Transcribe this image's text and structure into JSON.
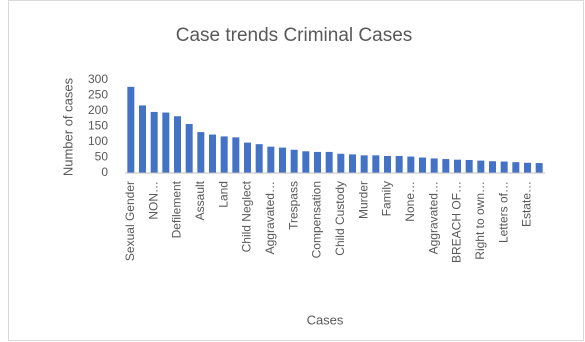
{
  "chart_data": {
    "type": "bar",
    "title": "Case trends Criminal Cases",
    "x_label": "Cases",
    "y_label": "Number of cases",
    "categories": [
      "Sexual Gender",
      null,
      "NON…",
      null,
      "Defilement",
      null,
      "Assault",
      null,
      "Land",
      null,
      "Child Neglect",
      null,
      "Aggravated…",
      null,
      "Trespass",
      null,
      "Compensation",
      null,
      "Child Custody",
      null,
      "Murder",
      null,
      "Family",
      null,
      "None…",
      null,
      "Aggravated…",
      null,
      "BREACH OF…",
      null,
      "Right to own…",
      null,
      "Letters of…",
      null,
      "Estate…",
      null
    ],
    "values": [
      278,
      218,
      197,
      195,
      183,
      158,
      132,
      124,
      118,
      115,
      98,
      93,
      85,
      82,
      75,
      70,
      68,
      68,
      62,
      60,
      57,
      57,
      55,
      55,
      53,
      50,
      47,
      45,
      43,
      42,
      40,
      38,
      37,
      35,
      33,
      32
    ],
    "color": "#4472c4",
    "ylim": [
      0,
      300
    ],
    "yticks": [
      0,
      50,
      100,
      150,
      200,
      250,
      300
    ],
    "grid": false
  }
}
